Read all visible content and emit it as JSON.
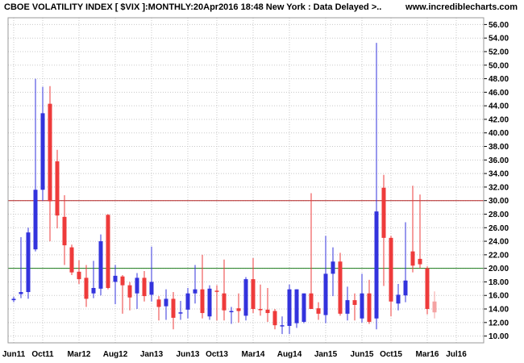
{
  "header": {
    "title": "CBOE VOLATILITY INDEX [ $VIX ]:MONTHLY:20Apr2016 18:48 New York : Data Delayed >..",
    "site": "www.incrediblecharts.com"
  },
  "colors": {
    "up": "#3333dd",
    "down": "#ee3b3b",
    "current": "#f4a3a3",
    "grid": "#c8c8c8",
    "upper_line": "#b22222",
    "lower_line": "#1a7a1a"
  },
  "chart_data": {
    "type": "candlestick",
    "title": "CBOE VOLATILITY INDEX [ $VIX ]:MONTHLY:20Apr2016 18:48 New York : Data Delayed >..",
    "x_tick_labels": [
      "Jun11",
      "Oct11",
      "Mar12",
      "Aug12",
      "Jan13",
      "Jun13",
      "Oct13",
      "Mar14",
      "Aug14",
      "Jan15",
      "Jun15",
      "Oct15",
      "Mar16",
      "Jul16"
    ],
    "x_tick_index": [
      0,
      4,
      9,
      14,
      19,
      24,
      28,
      33,
      38,
      43,
      48,
      52,
      57,
      61
    ],
    "y_tick_labels": [
      "10.00",
      "12.00",
      "14.00",
      "16.00",
      "18.00",
      "20.00",
      "22.00",
      "24.00",
      "26.00",
      "28.00",
      "30.00",
      "32.00",
      "34.00",
      "36.00",
      "38.00",
      "40.00",
      "42.00",
      "44.00",
      "46.00",
      "48.00",
      "50.00",
      "52.00",
      "54.00",
      "56.00"
    ],
    "ylim": [
      9,
      57
    ],
    "grid": true,
    "horizontal_lines": [
      {
        "value": 30,
        "color": "upper_line"
      },
      {
        "value": 20,
        "color": "lower_line"
      }
    ],
    "candles": [
      {
        "m": "May11",
        "o": 15.3,
        "h": 15.8,
        "l": 15.0,
        "c": 15.5
      },
      {
        "m": "Jun11",
        "o": 16.2,
        "h": 24.6,
        "l": 15.6,
        "c": 16.5
      },
      {
        "m": "Jul11",
        "o": 16.5,
        "h": 26.0,
        "l": 15.5,
        "c": 25.3
      },
      {
        "m": "Aug11",
        "o": 22.8,
        "h": 48.0,
        "l": 22.5,
        "c": 31.6
      },
      {
        "m": "Sep11",
        "o": 31.6,
        "h": 46.8,
        "l": 30.0,
        "c": 42.9
      },
      {
        "m": "Oct11",
        "o": 44.3,
        "h": 46.9,
        "l": 24.0,
        "c": 29.9
      },
      {
        "m": "Nov11",
        "o": 35.8,
        "h": 37.5,
        "l": 25.9,
        "c": 27.8
      },
      {
        "m": "Dec11",
        "o": 27.6,
        "h": 30.8,
        "l": 20.5,
        "c": 23.4
      },
      {
        "m": "Jan12",
        "o": 23.1,
        "h": 23.5,
        "l": 19.0,
        "c": 19.4
      },
      {
        "m": "Feb12",
        "o": 19.5,
        "h": 21.2,
        "l": 17.7,
        "c": 18.4
      },
      {
        "m": "Mar12",
        "o": 18.6,
        "h": 20.5,
        "l": 14.3,
        "c": 15.5
      },
      {
        "m": "Apr12",
        "o": 16.3,
        "h": 21.1,
        "l": 15.6,
        "c": 17.1
      },
      {
        "m": "May12",
        "o": 17.0,
        "h": 25.0,
        "l": 16.0,
        "c": 24.0
      },
      {
        "m": "Jun12",
        "o": 27.9,
        "h": 28.0,
        "l": 16.9,
        "c": 17.1
      },
      {
        "m": "Jul12",
        "o": 18.0,
        "h": 20.5,
        "l": 14.7,
        "c": 18.9
      },
      {
        "m": "Aug12",
        "o": 18.8,
        "h": 19.0,
        "l": 13.3,
        "c": 17.5
      },
      {
        "m": "Sep12",
        "o": 17.5,
        "h": 18.0,
        "l": 13.8,
        "c": 15.7
      },
      {
        "m": "Oct12",
        "o": 16.3,
        "h": 19.3,
        "l": 14.0,
        "c": 18.6
      },
      {
        "m": "Nov12",
        "o": 18.6,
        "h": 19.6,
        "l": 15.1,
        "c": 15.9
      },
      {
        "m": "Dec12",
        "o": 16.1,
        "h": 23.2,
        "l": 15.1,
        "c": 18.0
      },
      {
        "m": "Jan13",
        "o": 15.4,
        "h": 15.9,
        "l": 12.3,
        "c": 14.3
      },
      {
        "m": "Feb13",
        "o": 14.4,
        "h": 16.9,
        "l": 12.4,
        "c": 15.5
      },
      {
        "m": "Mar13",
        "o": 15.5,
        "h": 16.5,
        "l": 11.0,
        "c": 12.7
      },
      {
        "m": "Apr13",
        "o": 13.5,
        "h": 15.2,
        "l": 12.4,
        "c": 13.5
      },
      {
        "m": "May13",
        "o": 13.9,
        "h": 17.1,
        "l": 12.6,
        "c": 16.3
      },
      {
        "m": "Jun13",
        "o": 16.3,
        "h": 20.5,
        "l": 14.8,
        "c": 16.9
      },
      {
        "m": "Jul13",
        "o": 16.9,
        "h": 22.0,
        "l": 12.6,
        "c": 13.4
      },
      {
        "m": "Aug13",
        "o": 12.9,
        "h": 17.5,
        "l": 12.4,
        "c": 17.0
      },
      {
        "m": "Sep13",
        "o": 16.7,
        "h": 17.5,
        "l": 12.3,
        "c": 16.6
      },
      {
        "m": "Oct13",
        "o": 16.3,
        "h": 21.3,
        "l": 12.3,
        "c": 13.8
      },
      {
        "m": "Nov13",
        "o": 13.6,
        "h": 14.3,
        "l": 11.8,
        "c": 13.7
      },
      {
        "m": "Dec13",
        "o": 14.1,
        "h": 16.3,
        "l": 12.0,
        "c": 13.7
      },
      {
        "m": "Jan14",
        "o": 13.0,
        "h": 18.7,
        "l": 12.3,
        "c": 18.4
      },
      {
        "m": "Feb14",
        "o": 18.4,
        "h": 21.5,
        "l": 13.4,
        "c": 14.0
      },
      {
        "m": "Mar14",
        "o": 14.0,
        "h": 17.6,
        "l": 13.0,
        "c": 13.9
      },
      {
        "m": "Apr14",
        "o": 13.9,
        "h": 17.1,
        "l": 12.1,
        "c": 13.4
      },
      {
        "m": "May14",
        "o": 13.7,
        "h": 14.0,
        "l": 11.0,
        "c": 11.6
      },
      {
        "m": "Jun14",
        "o": 11.6,
        "h": 12.9,
        "l": 10.3,
        "c": 11.6
      },
      {
        "m": "Jul14",
        "o": 11.5,
        "h": 17.6,
        "l": 10.3,
        "c": 16.9
      },
      {
        "m": "Aug14",
        "o": 11.9,
        "h": 16.9,
        "l": 11.2,
        "c": 16.9
      },
      {
        "m": "Sep14",
        "o": 12.1,
        "h": 16.3,
        "l": 11.9,
        "c": 16.3
      },
      {
        "m": "Oct14",
        "o": 16.3,
        "h": 31.1,
        "l": 14.0,
        "c": 14.0
      },
      {
        "m": "Nov14",
        "o": 14.1,
        "h": 15.0,
        "l": 12.4,
        "c": 13.3
      },
      {
        "m": "Dec14",
        "o": 13.1,
        "h": 24.8,
        "l": 11.9,
        "c": 19.2
      },
      {
        "m": "Jan15",
        "o": 19.2,
        "h": 23.1,
        "l": 15.9,
        "c": 21.0
      },
      {
        "m": "Feb15",
        "o": 21.0,
        "h": 22.3,
        "l": 13.0,
        "c": 13.3
      },
      {
        "m": "Mar15",
        "o": 13.3,
        "h": 17.3,
        "l": 12.3,
        "c": 15.3
      },
      {
        "m": "Apr15",
        "o": 15.3,
        "h": 16.3,
        "l": 12.3,
        "c": 14.6
      },
      {
        "m": "May15",
        "o": 12.6,
        "h": 19.2,
        "l": 12.0,
        "c": 16.3
      },
      {
        "m": "Jun15",
        "o": 16.3,
        "h": 18.3,
        "l": 11.8,
        "c": 12.1
      },
      {
        "m": "Jul15",
        "o": 12.6,
        "h": 53.3,
        "l": 11.0,
        "c": 28.4
      },
      {
        "m": "Aug15",
        "o": 31.9,
        "h": 33.8,
        "l": 17.4,
        "c": 24.5
      },
      {
        "m": "Sep15",
        "o": 24.5,
        "h": 24.8,
        "l": 12.9,
        "c": 15.1
      },
      {
        "m": "Oct15",
        "o": 14.8,
        "h": 17.7,
        "l": 13.8,
        "c": 16.1
      },
      {
        "m": "Nov15",
        "o": 16.0,
        "h": 26.8,
        "l": 15.0,
        "c": 18.2
      },
      {
        "m": "Dec15",
        "o": 22.5,
        "h": 32.2,
        "l": 19.4,
        "c": 20.4
      },
      {
        "m": "Jan16",
        "o": 21.4,
        "h": 30.9,
        "l": 20.0,
        "c": 20.6
      },
      {
        "m": "Feb16",
        "o": 20.0,
        "h": 20.3,
        "l": 13.2,
        "c": 14.0
      },
      {
        "m": "Mar16",
        "o": 15.1,
        "h": 16.6,
        "l": 12.6,
        "c": 13.5
      }
    ]
  }
}
